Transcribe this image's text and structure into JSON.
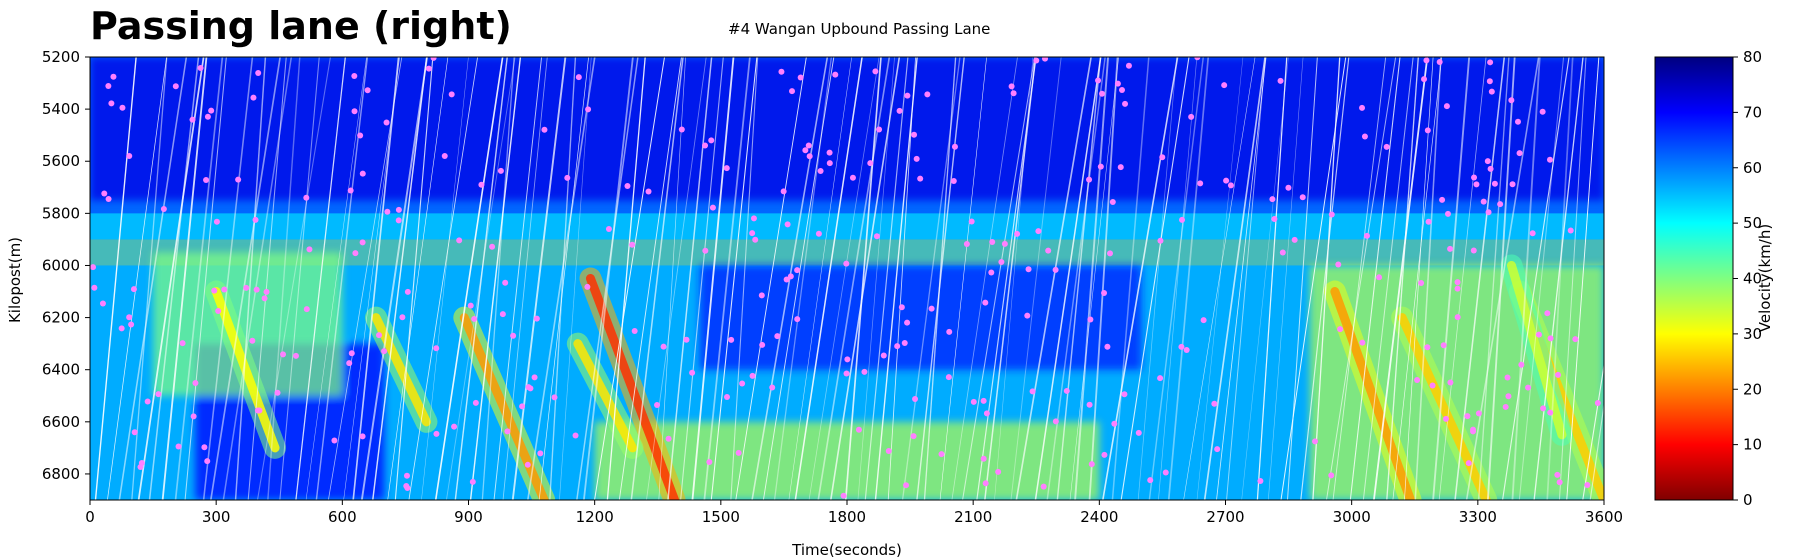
{
  "chart_data": {
    "type": "heatmap",
    "title": "Passing lane (right)",
    "subtitle": "#4 Wangan Upbound Passing Lane",
    "xlabel": "Time(seconds)",
    "ylabel": "Kilopost(m)",
    "xlim": [
      0,
      3600
    ],
    "ylim": [
      5200,
      6900
    ],
    "y_inverted": false,
    "x_ticks": [
      0,
      300,
      600,
      900,
      1200,
      1500,
      1800,
      2100,
      2400,
      2700,
      3000,
      3300,
      3600
    ],
    "y_ticks": [
      5200,
      5400,
      5600,
      5800,
      6000,
      6200,
      6400,
      6600,
      6800
    ],
    "colorbar": {
      "label": "Velocity(km/h)",
      "range": [
        0,
        80
      ],
      "ticks": [
        0,
        10,
        20,
        30,
        40,
        50,
        60,
        70,
        80
      ],
      "colormap": "jet_reversed",
      "stops": [
        "#800000",
        "#ff0000",
        "#ff8000",
        "#ffff00",
        "#80ff80",
        "#00ffff",
        "#0080ff",
        "#0000ff",
        "#000080"
      ]
    },
    "grid": false,
    "background_velocity_kmh": 62,
    "speed_bands": [
      {
        "kilopost_from": 5800,
        "kilopost_to": 5900,
        "velocity_kmh": 50
      },
      {
        "kilopost_from": 5900,
        "kilopost_to": 6000,
        "velocity_kmh": 40
      },
      {
        "kilopost_from": 6000,
        "kilopost_to": 6900,
        "velocity_kmh": 52
      }
    ],
    "congestion_waves": [
      {
        "time_start": 1080,
        "kilopost_start": 6900,
        "time_end": 890,
        "kilopost_end": 6200,
        "velocity_kmh": 22
      },
      {
        "time_start": 1390,
        "kilopost_start": 6900,
        "time_end": 1190,
        "kilopost_end": 6050,
        "velocity_kmh": 14
      },
      {
        "time_start": 1290,
        "kilopost_start": 6700,
        "time_end": 1160,
        "kilopost_end": 6300,
        "velocity_kmh": 28
      },
      {
        "time_start": 440,
        "kilopost_start": 6700,
        "time_end": 300,
        "kilopost_end": 6100,
        "velocity_kmh": 30
      },
      {
        "time_start": 800,
        "kilopost_start": 6600,
        "time_end": 680,
        "kilopost_end": 6200,
        "velocity_kmh": 28
      },
      {
        "time_start": 3140,
        "kilopost_start": 6900,
        "time_end": 2960,
        "kilopost_end": 6100,
        "velocity_kmh": 22
      },
      {
        "time_start": 3320,
        "kilopost_start": 6900,
        "time_end": 3120,
        "kilopost_end": 6200,
        "velocity_kmh": 26
      },
      {
        "time_start": 3600,
        "kilopost_start": 6900,
        "time_end": 3400,
        "kilopost_end": 6100,
        "velocity_kmh": 26
      },
      {
        "time_start": 3500,
        "kilopost_start": 6650,
        "time_end": 3380,
        "kilopost_end": 6000,
        "velocity_kmh": 34
      }
    ],
    "slow_patches": [
      {
        "time_from": 1200,
        "time_to": 2400,
        "kilopost_from": 6600,
        "kilopost_to": 6900,
        "velocity_kmh": 36
      },
      {
        "time_from": 2900,
        "time_to": 3600,
        "kilopost_from": 6000,
        "kilopost_to": 6900,
        "velocity_kmh": 36
      },
      {
        "time_from": 150,
        "time_to": 600,
        "kilopost_from": 5950,
        "kilopost_to": 6500,
        "velocity_kmh": 40
      }
    ],
    "fast_patches": [
      {
        "time_from": 0,
        "time_to": 3600,
        "kilopost_from": 5200,
        "kilopost_to": 5750,
        "velocity_kmh": 72
      },
      {
        "time_from": 1450,
        "time_to": 2500,
        "kilopost_from": 6000,
        "kilopost_to": 6400,
        "velocity_kmh": 68
      },
      {
        "time_from": 250,
        "time_to": 700,
        "kilopost_from": 6300,
        "kilopost_to": 6900,
        "velocity_kmh": 70
      }
    ],
    "trajectory_overlay": {
      "color": "#ffffff",
      "count": 140
    },
    "markers": {
      "color": "#ff80ff",
      "count": 330
    }
  }
}
